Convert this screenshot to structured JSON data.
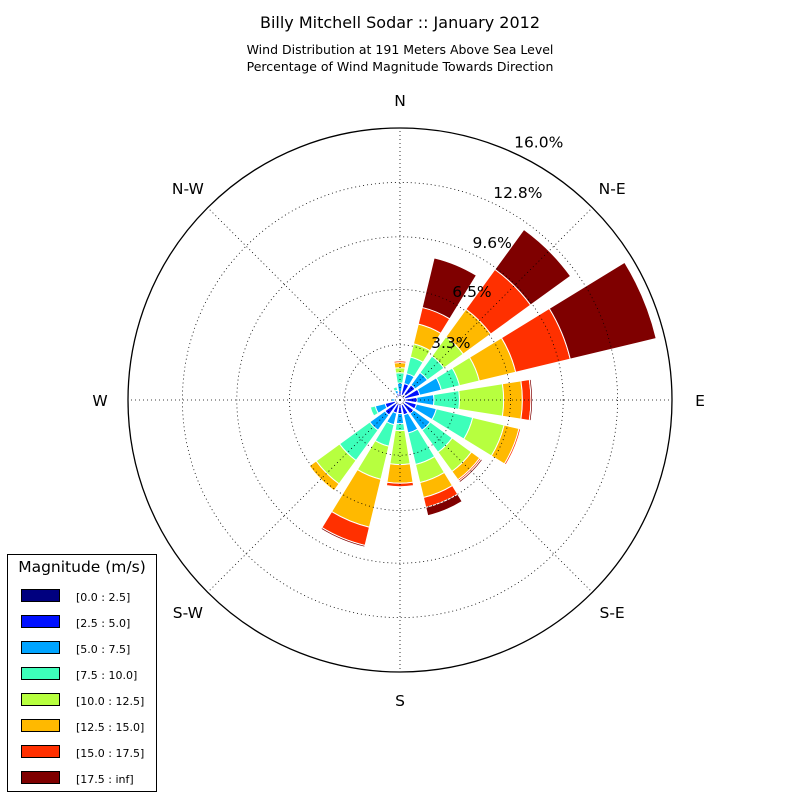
{
  "chart_data": {
    "type": "windrose",
    "title": "Billy Mitchell Sodar :: January 2012",
    "subtitle_lines": [
      "Wind Distribution at 191 Meters Above Sea Level",
      "Percentage of Wind Magnitude Towards Direction"
    ],
    "direction_labels": [
      "N",
      "N-E",
      "E",
      "S-E",
      "S",
      "S-W",
      "W",
      "N-W"
    ],
    "ring_labels": [
      "3.3%",
      "6.5%",
      "9.6%",
      "12.8%",
      "16.0%"
    ],
    "ring_values": [
      3.25,
      6.5,
      9.6,
      12.8,
      16.0
    ],
    "rmax": 16.0,
    "legend": {
      "title": "Magnitude (m/s)",
      "placement": "lower-left",
      "bins": [
        "[0.0 : 2.5]",
        "[2.5 : 5.0]",
        "[5.0 : 7.5]",
        "[7.5 : 10.0]",
        "[10.0 : 12.5]",
        "[12.5 : 15.0]",
        "[15.0 : 17.5]",
        "[17.5 : inf]"
      ],
      "colors": [
        "#00007f",
        "#0010ff",
        "#00a4ff",
        "#3dffba",
        "#b7ff3f",
        "#ffb900",
        "#ff3000",
        "#7f0000"
      ]
    },
    "sector_count": 16,
    "sectors": [
      {
        "direction_deg": 0,
        "cumulative": [
          0.2,
          0.5,
          1.0,
          1.6,
          1.9,
          2.2,
          2.3,
          2.3
        ]
      },
      {
        "direction_deg": 22.5,
        "cumulative": [
          0.3,
          1.0,
          1.6,
          2.6,
          3.4,
          4.6,
          5.6,
          8.6
        ]
      },
      {
        "direction_deg": 45,
        "cumulative": [
          0.4,
          1.1,
          2.0,
          3.2,
          4.6,
          6.6,
          9.5,
          12.4
        ]
      },
      {
        "direction_deg": 67.5,
        "cumulative": [
          0.3,
          1.2,
          2.5,
          3.6,
          4.8,
          7.0,
          10.3,
          15.5
        ]
      },
      {
        "direction_deg": 90,
        "cumulative": [
          0.3,
          1.0,
          2.0,
          3.5,
          6.1,
          7.2,
          7.7,
          7.8
        ]
      },
      {
        "direction_deg": 112.5,
        "cumulative": [
          0.3,
          1.0,
          2.2,
          4.4,
          6.3,
          7.2,
          7.3,
          7.3
        ]
      },
      {
        "direction_deg": 135,
        "cumulative": [
          0.3,
          1.0,
          2.2,
          3.8,
          5.2,
          5.8,
          5.9,
          6.0
        ]
      },
      {
        "direction_deg": 157.5,
        "cumulative": [
          0.3,
          0.9,
          2.0,
          3.9,
          5.0,
          5.9,
          6.5,
          7.0
        ]
      },
      {
        "direction_deg": 180,
        "cumulative": [
          0.2,
          0.8,
          1.4,
          1.8,
          3.8,
          4.9,
          5.1,
          5.1
        ]
      },
      {
        "direction_deg": 202.5,
        "cumulative": [
          0.2,
          0.8,
          1.5,
          2.8,
          4.8,
          7.7,
          8.8,
          8.9
        ]
      },
      {
        "direction_deg": 225,
        "cumulative": [
          0.3,
          1.1,
          2.2,
          4.4,
          6.1,
          6.6,
          6.6,
          6.6
        ]
      },
      {
        "direction_deg": 247.5,
        "cumulative": [
          0.3,
          0.9,
          1.5,
          1.8,
          1.8,
          1.8,
          1.8,
          1.8
        ]
      },
      {
        "direction_deg": 270,
        "cumulative": [
          0.2,
          0.3,
          0.5,
          0.5,
          0.5,
          0.5,
          0.5,
          0.5
        ]
      },
      {
        "direction_deg": 292.5,
        "cumulative": [
          0.1,
          0.2,
          0.2,
          0.2,
          0.2,
          0.2,
          0.2,
          0.2
        ]
      },
      {
        "direction_deg": 315,
        "cumulative": [
          0.1,
          0.3,
          0.3,
          0.3,
          0.3,
          0.3,
          0.3,
          0.3
        ]
      },
      {
        "direction_deg": 337.5,
        "cumulative": [
          0.1,
          0.4,
          0.6,
          0.8,
          0.8,
          0.8,
          0.8,
          0.8
        ]
      }
    ],
    "grid": true
  }
}
